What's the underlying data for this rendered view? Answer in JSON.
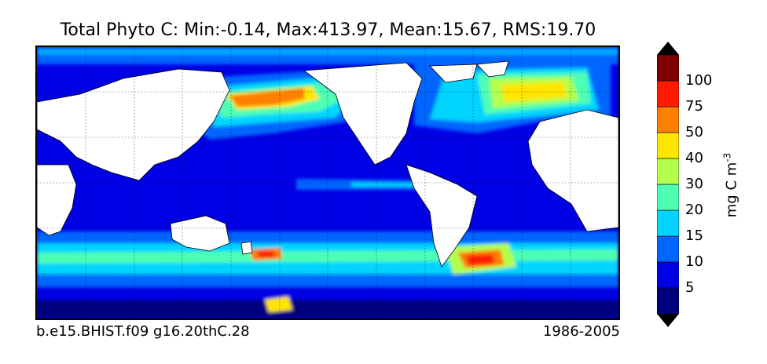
{
  "title": "Total Phyto C: Min:-0.14, Max:413.97, Mean:15.67, RMS:19.70",
  "caption_left": "b.e15.BHIST.f09 g16.20thC.28",
  "caption_right": "1986-2005",
  "colorbar": {
    "unit": "mg C m",
    "unit_exponent": "-3",
    "levels": [
      "5",
      "10",
      "15",
      "20",
      "30",
      "40",
      "50",
      "75",
      "100"
    ],
    "colors": [
      "#00007f",
      "#0000e5",
      "#0066ff",
      "#00d4ff",
      "#4dffb2",
      "#b2ff4d",
      "#ffe500",
      "#ff7f00",
      "#ff1a00",
      "#7f0000"
    ],
    "extend": "both"
  },
  "map": {
    "projection": "cylindrical",
    "grid": true,
    "land_color": "#ffffff",
    "field_name": "Total Phyto C"
  }
}
